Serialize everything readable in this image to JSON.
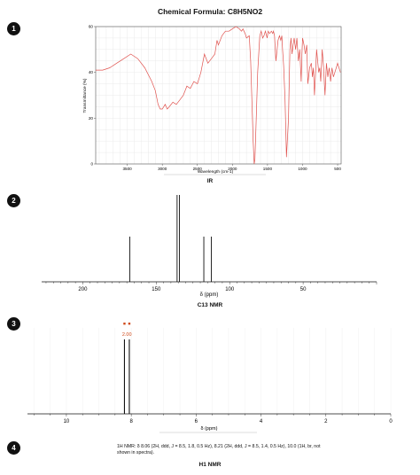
{
  "title": "Chemical Formula: C8H5NO2",
  "badges": [
    "1",
    "2",
    "3",
    "4"
  ],
  "ir": {
    "label": "IR",
    "xlabel": "Wavelength (cm-1)",
    "ylabel": "Transmittance (%)"
  },
  "c13": {
    "label": "C13 NMR",
    "xlabel": "δ (ppm)"
  },
  "h1": {
    "label": "H1 NMR",
    "xlabel": "δ (ppm)",
    "peak_annotation": "2.00",
    "text": "1H NMR: δ 8.06 (2H, ddd, J = 8.5, 1.8, 0.5 Hz), 8.21 (2H, ddd, J = 8.5, 1.4, 0.5 Hz), 10.0 (1H, br, not shown in spectra)."
  },
  "colors": {
    "ir_line": "#e0524e",
    "nmr_line": "#111111",
    "h1_marker": "#d04a1a"
  },
  "chart_data": [
    {
      "type": "line",
      "name": "IR",
      "xlabel": "Wavelength (cm-1)",
      "ylabel": "Transmittance (%)",
      "x_reversed": true,
      "xlim": [
        3950,
        450
      ],
      "ylim": [
        0,
        60
      ],
      "xticks": [
        3500,
        3000,
        2500,
        2000,
        1500,
        1000,
        500
      ],
      "yticks": [
        0,
        20,
        40,
        60
      ],
      "grid": true,
      "x": [
        3950,
        3850,
        3750,
        3650,
        3550,
        3450,
        3350,
        3250,
        3150,
        3100,
        3060,
        3030,
        3000,
        2960,
        2930,
        2900,
        2850,
        2800,
        2750,
        2700,
        2650,
        2600,
        2550,
        2500,
        2450,
        2400,
        2350,
        2300,
        2250,
        2220,
        2200,
        2150,
        2100,
        2050,
        2000,
        1950,
        1900,
        1870,
        1850,
        1820,
        1800,
        1760,
        1740,
        1725,
        1705,
        1690,
        1680,
        1660,
        1640,
        1610,
        1590,
        1570,
        1550,
        1530,
        1505,
        1490,
        1470,
        1445,
        1425,
        1415,
        1400,
        1380,
        1350,
        1330,
        1310,
        1295,
        1285,
        1270,
        1250,
        1230,
        1200,
        1180,
        1165,
        1150,
        1135,
        1120,
        1100,
        1080,
        1060,
        1040,
        1020,
        1010,
        1000,
        980,
        960,
        940,
        925,
        900,
        875,
        860,
        845,
        830,
        800,
        770,
        755,
        740,
        720,
        700,
        680,
        660,
        640,
        620,
        600,
        580,
        560,
        540,
        520,
        500,
        480,
        460
      ],
      "y": [
        41,
        41,
        42,
        44,
        46,
        48,
        46,
        42,
        36,
        32,
        26,
        24,
        24,
        26,
        24,
        25,
        27,
        26,
        28,
        30,
        34,
        33,
        36,
        35,
        40,
        48,
        44,
        46,
        48,
        54,
        52,
        56,
        58,
        58,
        59,
        60,
        59,
        58,
        59,
        57,
        55,
        56,
        45,
        30,
        10,
        0,
        2,
        20,
        40,
        56,
        58,
        55,
        56,
        58,
        55,
        58,
        57,
        58,
        57,
        58,
        56,
        45,
        54,
        56,
        54,
        56,
        50,
        43,
        28,
        3,
        20,
        50,
        55,
        48,
        52,
        55,
        50,
        55,
        45,
        50,
        36,
        48,
        55,
        52,
        48,
        52,
        35,
        42,
        44,
        38,
        42,
        30,
        50,
        40,
        42,
        36,
        50,
        42,
        30,
        44,
        38,
        42,
        36,
        42,
        38,
        40,
        42,
        44,
        42,
        40
      ]
    },
    {
      "type": "bar",
      "name": "C13 NMR",
      "xlabel": "δ (ppm)",
      "x_reversed": true,
      "xlim": [
        228,
        0
      ],
      "xticks": [
        200,
        150,
        100,
        50
      ],
      "peaks": [
        {
          "ppm": 168.0,
          "intensity": 0.52
        },
        {
          "ppm": 135.8,
          "intensity": 1.0
        },
        {
          "ppm": 134.2,
          "intensity": 1.0
        },
        {
          "ppm": 117.6,
          "intensity": 0.52
        },
        {
          "ppm": 112.5,
          "intensity": 0.52
        }
      ]
    },
    {
      "type": "bar",
      "name": "H1 NMR",
      "xlabel": "δ (ppm)",
      "x_reversed": true,
      "xlim": [
        11.2,
        0
      ],
      "xticks": [
        10,
        8,
        6,
        4,
        2,
        0
      ],
      "peaks": [
        {
          "ppm": 8.21,
          "intensity": 1.0
        },
        {
          "ppm": 8.06,
          "intensity": 1.0
        }
      ]
    }
  ]
}
